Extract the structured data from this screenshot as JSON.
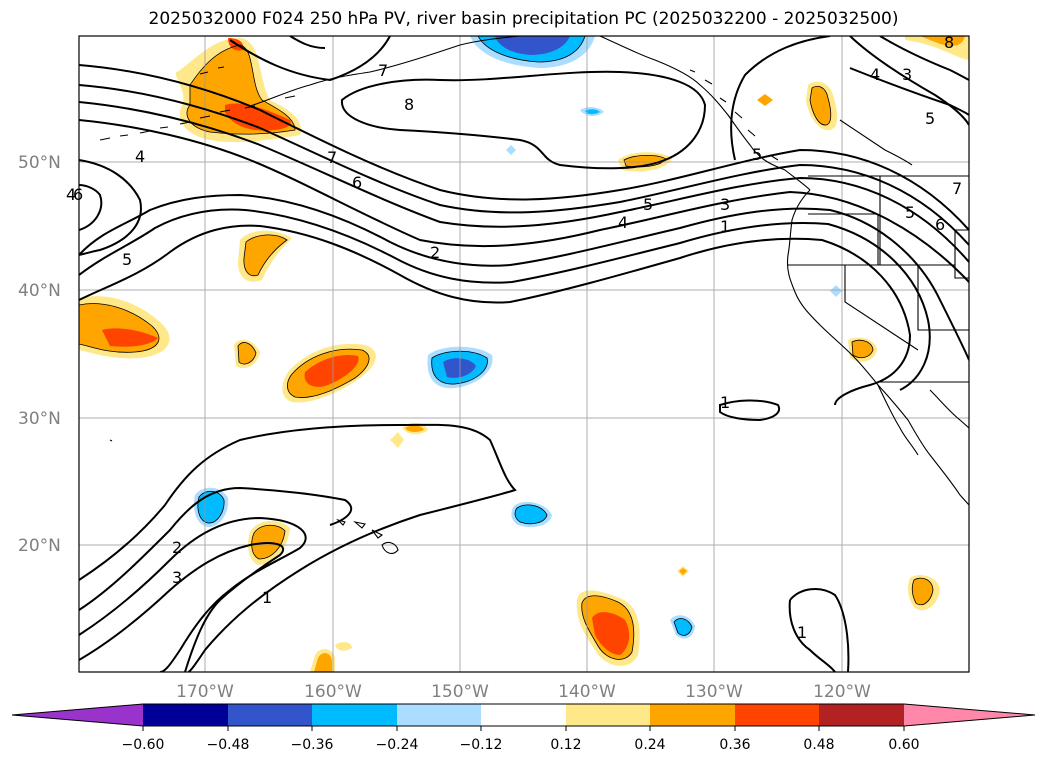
{
  "title": "2025032000 F024 250 hPa PV, river basin precipitation PC (2025032200 - 2025032500)",
  "lat_labels": [
    "50°N",
    "40°N",
    "30°N",
    "20°N"
  ],
  "lon_labels": [
    "170°W",
    "160°W",
    "150°W",
    "140°W",
    "130°W",
    "120°W"
  ],
  "contour_labels": [
    "8",
    "7",
    "7",
    "6",
    "5",
    "5",
    "4",
    "4",
    "3",
    "2",
    "2",
    "1",
    "1",
    "1",
    "1",
    "3",
    "4",
    "5",
    "6",
    "7",
    "8",
    "3",
    "4",
    "5",
    "5",
    "6"
  ],
  "colorbar": {
    "ticks": [
      "−0.60",
      "−0.48",
      "−0.36",
      "−0.24",
      "−0.12",
      "0.12",
      "0.24",
      "0.36",
      "0.48",
      "0.60"
    ],
    "colors": [
      "#9933cc",
      "#000099",
      "#3355cc",
      "#00bbff",
      "#aaddff",
      "#ffffff",
      "#ffe88a",
      "#ffa500",
      "#ff4400",
      "#b22222",
      "#ff88aa"
    ]
  },
  "palette": {
    "pos_1": "#ffe88a",
    "pos_2": "#ffa500",
    "pos_3": "#ff4400",
    "neg_1": "#aaddff",
    "neg_2": "#00bbff",
    "neg_3": "#3355cc"
  }
}
